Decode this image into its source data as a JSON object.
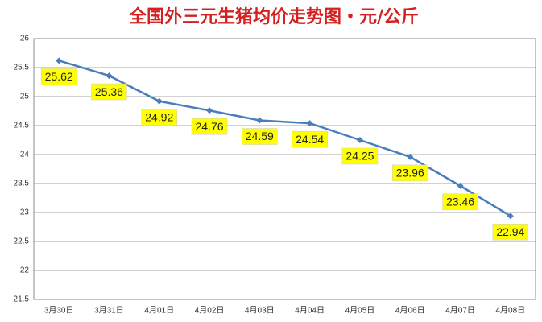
{
  "chart_data": {
    "type": "line",
    "title": "全国外三元生猪均价走势图・元/公斤",
    "categories": [
      "3月30日",
      "3月31日",
      "4月01日",
      "4月02日",
      "4月03日",
      "4月04日",
      "4月05日",
      "4月06日",
      "4月07日",
      "4月08日"
    ],
    "values": [
      25.62,
      25.36,
      24.92,
      24.76,
      24.59,
      24.54,
      24.25,
      23.96,
      23.46,
      22.94
    ],
    "color": "#4a7ebb",
    "label_color": "#ffff00",
    "ylim": [
      21.5,
      26
    ],
    "yticks": [
      21.5,
      22,
      22.5,
      23,
      23.5,
      24,
      24.5,
      25,
      25.5,
      26
    ],
    "grid": true
  }
}
